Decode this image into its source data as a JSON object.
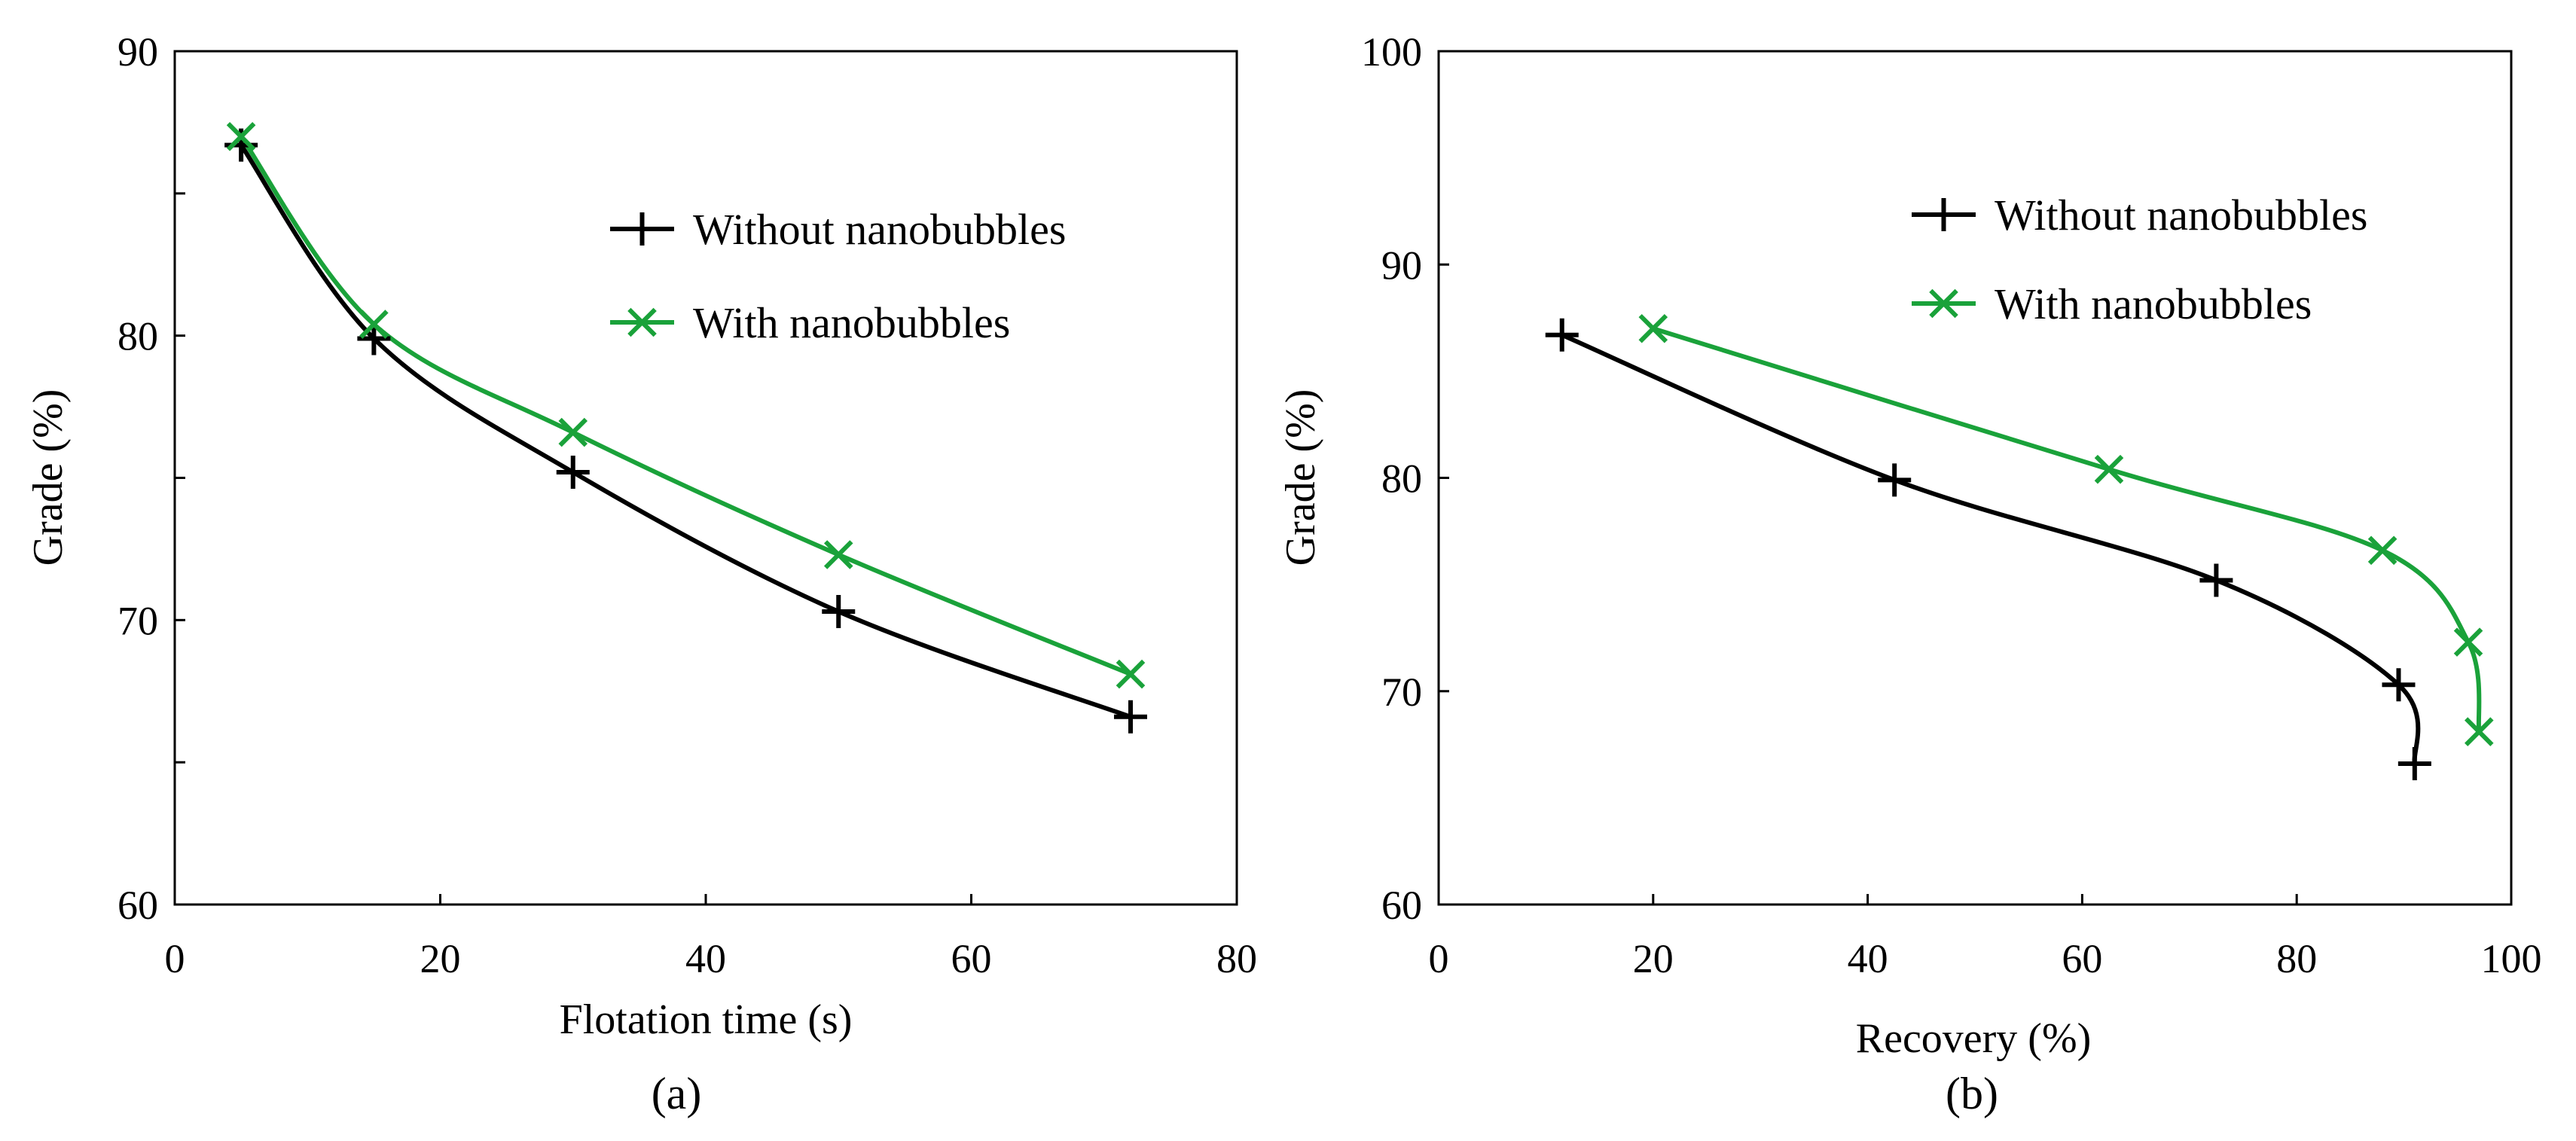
{
  "colors": {
    "without": "#000000",
    "with": "#1aa23a"
  },
  "chart_data": [
    {
      "type": "line",
      "panel_label": "(a)",
      "title": "",
      "xlabel": "Flotation time (s)",
      "ylabel": "Grade (%)",
      "xlim": [
        0,
        80
      ],
      "ylim": [
        60,
        90
      ],
      "xticks": [
        0,
        20,
        40,
        60,
        80
      ],
      "xtick_labels": [
        "0",
        "20",
        "40",
        "60",
        "80"
      ],
      "yticks": [
        60,
        70,
        80,
        90
      ],
      "yminor": [
        65,
        75,
        85
      ],
      "ytick_labels": [
        "60",
        "70",
        "80",
        "90"
      ],
      "legend_position": "top-right",
      "series": [
        {
          "name": "Without nanobubbles",
          "marker": "plus",
          "color": "#000000",
          "x": [
            5,
            15,
            30,
            50,
            72
          ],
          "y": [
            86.7,
            79.9,
            75.2,
            70.3,
            66.6
          ]
        },
        {
          "name": "With nanobubbles",
          "marker": "cross",
          "color": "#1aa23a",
          "x": [
            5,
            15,
            30,
            50,
            72
          ],
          "y": [
            87.0,
            80.4,
            76.6,
            72.3,
            68.1
          ]
        }
      ]
    },
    {
      "type": "line",
      "panel_label": "(b)",
      "title": "",
      "xlabel": "Recovery (%)",
      "ylabel": "Grade (%)",
      "xlim": [
        0,
        100
      ],
      "ylim": [
        60,
        100
      ],
      "xticks": [
        0,
        20,
        40,
        60,
        80,
        100
      ],
      "xtick_labels": [
        "0",
        "20",
        "40",
        "60",
        "80",
        "100"
      ],
      "yticks": [
        60,
        70,
        80,
        90,
        100
      ],
      "yminor": [],
      "ytick_labels": [
        "60",
        "70",
        "80",
        "90",
        "100"
      ],
      "legend_position": "top-right",
      "series": [
        {
          "name": "Without nanobubbles",
          "marker": "plus",
          "color": "#000000",
          "x": [
            11.5,
            42.5,
            72.5,
            89.5,
            91.0
          ],
          "y": [
            86.7,
            79.9,
            75.2,
            70.3,
            66.6
          ]
        },
        {
          "name": "With nanobubbles",
          "marker": "cross",
          "color": "#1aa23a",
          "x": [
            20.0,
            62.5,
            88.0,
            96.0,
            97.0
          ],
          "y": [
            87.0,
            80.4,
            76.6,
            72.3,
            68.1
          ]
        }
      ]
    }
  ]
}
